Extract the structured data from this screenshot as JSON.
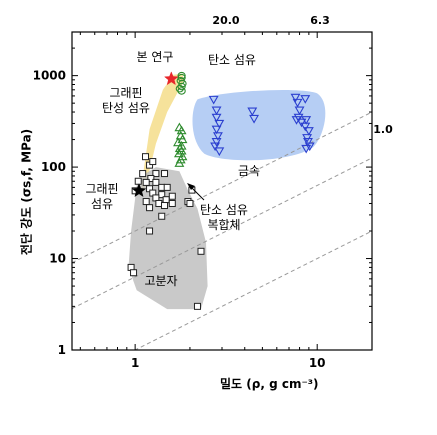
{
  "chart_data": {
    "type": "scatter",
    "x_scale": "log",
    "y_scale": "log",
    "xlim": [
      0.45,
      20
    ],
    "ylim": [
      1,
      3000
    ],
    "xlabel": "밀도 (ρ, g cm⁻³)",
    "ylabel": "전단 강도 (σs,f, MPa)",
    "x_ticks": [
      "1",
      "10"
    ],
    "y_ticks": [
      "1",
      "10",
      "100",
      "1000"
    ],
    "iso_lines": [
      {
        "label": "20.0",
        "ratio": 20.0
      },
      {
        "label": "6.3",
        "ratio": 6.3
      },
      {
        "label": "1.0",
        "ratio": 1.0
      }
    ],
    "regions": [
      {
        "label": "금속",
        "color": "#a9c6f2"
      },
      {
        "label": "고분자",
        "color": "#bfbfbf"
      },
      {
        "label": "",
        "color": "#f5dd8a"
      }
    ],
    "annotations": {
      "this_work": "본 연구",
      "graphene_elastic_fiber": "그래핀\n탄성 섬유",
      "carbon_fiber": "탄소 섬유",
      "graphene_fiber": "그래핀\n섬유",
      "carbon_fiber_composite": "탄소 섬유\n복합체"
    },
    "series": [
      {
        "name": "탄소 섬유",
        "marker": "circle",
        "color": "#2e8b2e",
        "points": [
          [
            1.8,
            1000
          ],
          [
            1.8,
            950
          ],
          [
            1.78,
            880
          ],
          [
            1.82,
            820
          ],
          [
            1.8,
            760
          ],
          [
            1.76,
            720
          ],
          [
            1.8,
            680
          ]
        ]
      },
      {
        "name": "탄소 섬유 복합체",
        "marker": "triangle-up",
        "color": "#2e8b2e",
        "points": [
          [
            1.75,
            270
          ],
          [
            1.8,
            250
          ],
          [
            1.78,
            220
          ],
          [
            1.82,
            200
          ],
          [
            1.72,
            185
          ],
          [
            1.8,
            170
          ],
          [
            1.76,
            160
          ],
          [
            1.8,
            150
          ],
          [
            1.74,
            140
          ],
          [
            1.82,
            130
          ],
          [
            1.78,
            120
          ],
          [
            1.75,
            110
          ]
        ]
      },
      {
        "name": "금속",
        "marker": "triangle-down",
        "color": "#2b3fcf",
        "points": [
          [
            2.7,
            550
          ],
          [
            2.8,
            420
          ],
          [
            2.8,
            350
          ],
          [
            2.9,
            300
          ],
          [
            2.8,
            260
          ],
          [
            2.85,
            220
          ],
          [
            2.8,
            190
          ],
          [
            2.75,
            170
          ],
          [
            2.9,
            150
          ],
          [
            4.4,
            410
          ],
          [
            4.5,
            340
          ],
          [
            7.6,
            580
          ],
          [
            7.8,
            510
          ],
          [
            8.0,
            420
          ],
          [
            7.9,
            350
          ],
          [
            8.2,
            310
          ],
          [
            8.6,
            560
          ],
          [
            8.7,
            330
          ],
          [
            8.6,
            280
          ],
          [
            9.0,
            250
          ],
          [
            8.8,
            210
          ],
          [
            8.9,
            190
          ],
          [
            9.1,
            170
          ],
          [
            8.7,
            160
          ],
          [
            7.7,
            330
          ]
        ]
      },
      {
        "name": "고분자",
        "marker": "square",
        "color": "#222222",
        "points": [
          [
            1.14,
            130
          ],
          [
            1.2,
            105
          ],
          [
            1.25,
            115
          ],
          [
            1.1,
            85
          ],
          [
            1.3,
            85
          ],
          [
            1.45,
            85
          ],
          [
            1.22,
            75
          ],
          [
            1.04,
            70
          ],
          [
            1.15,
            68
          ],
          [
            1.3,
            68
          ],
          [
            1.4,
            60
          ],
          [
            1.5,
            60
          ],
          [
            1.2,
            58
          ],
          [
            1.0,
            55
          ],
          [
            1.25,
            52
          ],
          [
            1.4,
            50
          ],
          [
            1.6,
            48
          ],
          [
            1.3,
            46
          ],
          [
            1.48,
            44
          ],
          [
            1.15,
            42
          ],
          [
            1.35,
            40
          ],
          [
            1.2,
            36
          ],
          [
            1.45,
            38
          ],
          [
            1.6,
            40
          ],
          [
            2.05,
            56
          ],
          [
            1.95,
            42
          ],
          [
            2.0,
            40
          ],
          [
            1.4,
            29
          ],
          [
            1.2,
            20
          ],
          [
            0.95,
            8
          ],
          [
            0.98,
            7
          ],
          [
            2.3,
            12
          ],
          [
            2.2,
            3
          ]
        ]
      },
      {
        "name": "그래핀 섬유",
        "marker": "star",
        "color": "#000000",
        "points": [
          [
            1.05,
            55
          ]
        ]
      },
      {
        "name": "그래핀 탄성 섬유",
        "marker": "star",
        "color": "#e8262a",
        "points": [
          [
            1.58,
            920
          ]
        ]
      }
    ]
  }
}
